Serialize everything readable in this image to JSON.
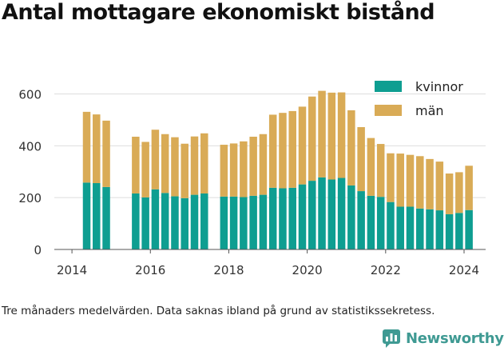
{
  "title": "Antal mottagare ekonomiskt bistånd",
  "footnote": "Tre månaders medelvärden. Data saknas ibland på grund av statistikssekretess.",
  "brand": "Newsworthy",
  "colors": {
    "kvinnor": "#0e9e91",
    "man": "#d9ab56",
    "grid": "#dddddd"
  },
  "chart_data": {
    "type": "bar",
    "stacked": true,
    "xlabel": "",
    "ylabel": "",
    "ylim": [
      0,
      650
    ],
    "yticks": [
      0,
      200,
      400,
      600
    ],
    "xticks": [
      2014,
      2016,
      2018,
      2020,
      2022,
      2024
    ],
    "xlim": [
      2013.55,
      2024.55
    ],
    "legend": {
      "position": "top-right",
      "entries": [
        "kvinnor",
        "män"
      ]
    },
    "grid": {
      "horizontal": true,
      "vertical": false
    },
    "x": [
      2014.375,
      2014.625,
      2014.875,
      2015.625,
      2015.875,
      2016.125,
      2016.375,
      2016.625,
      2016.875,
      2017.125,
      2017.375,
      2017.875,
      2018.125,
      2018.375,
      2018.625,
      2018.875,
      2019.125,
      2019.375,
      2019.625,
      2019.875,
      2020.125,
      2020.375,
      2020.625,
      2020.875,
      2021.125,
      2021.375,
      2021.625,
      2021.875,
      2022.125,
      2022.375,
      2022.625,
      2022.875,
      2023.125,
      2023.375,
      2023.625,
      2023.875,
      2024.125
    ],
    "series": [
      {
        "name": "kvinnor",
        "values": [
          258,
          256,
          241,
          216,
          201,
          232,
          218,
          205,
          198,
          211,
          216,
          204,
          204,
          202,
          207,
          211,
          238,
          236,
          238,
          251,
          265,
          278,
          270,
          276,
          247,
          225,
          207,
          203,
          183,
          165,
          165,
          158,
          155,
          151,
          136,
          141,
          152
        ]
      },
      {
        "name": "män",
        "values": [
          273,
          265,
          256,
          219,
          214,
          230,
          227,
          228,
          210,
          225,
          232,
          200,
          205,
          215,
          228,
          234,
          282,
          291,
          296,
          300,
          325,
          334,
          335,
          330,
          290,
          247,
          223,
          204,
          188,
          205,
          200,
          202,
          194,
          188,
          157,
          157,
          171
        ]
      }
    ]
  }
}
